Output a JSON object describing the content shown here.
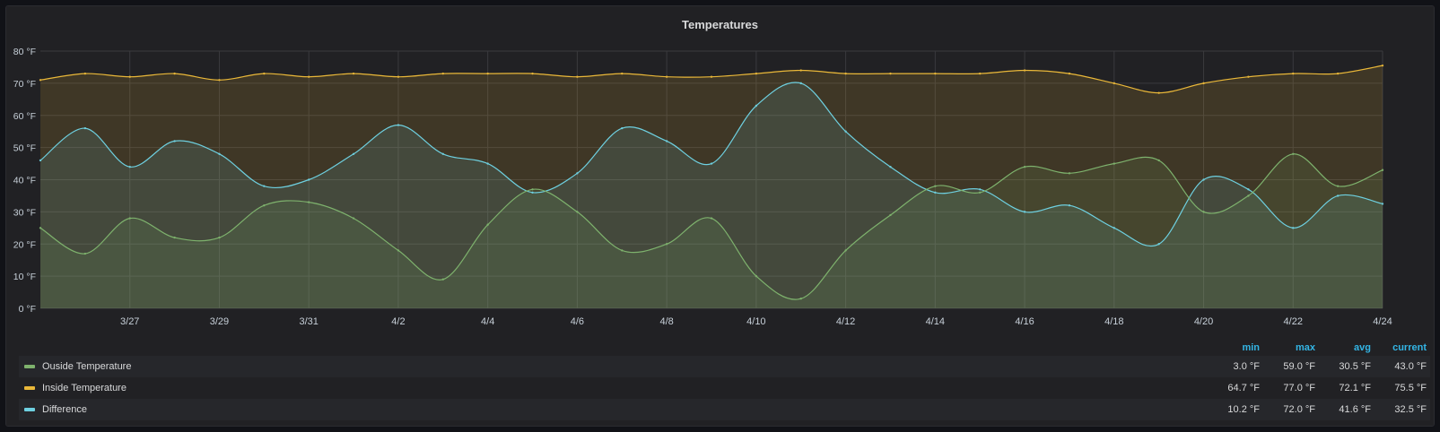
{
  "panel": {
    "title": "Temperatures"
  },
  "legend": {
    "headers": [
      "min",
      "max",
      "avg",
      "current"
    ],
    "rows": [
      {
        "name": "Ouside Temperature",
        "color": "#7eb26d",
        "values": [
          "3.0 °F",
          "59.0 °F",
          "30.5 °F",
          "43.0 °F"
        ]
      },
      {
        "name": "Inside Temperature",
        "color": "#eab839",
        "values": [
          "64.7 °F",
          "77.0 °F",
          "72.1 °F",
          "75.5 °F"
        ]
      },
      {
        "name": "Difference",
        "color": "#6ed0e0",
        "values": [
          "10.2 °F",
          "72.0 °F",
          "41.6 °F",
          "32.5 °F"
        ]
      }
    ]
  },
  "chart_data": {
    "type": "area",
    "title": "Temperatures",
    "xlabel": "",
    "ylabel": "",
    "xlim": [
      "3/25",
      "4/24"
    ],
    "ylim": [
      0,
      80
    ],
    "y_ticks": [
      "0 °F",
      "10 °F",
      "20 °F",
      "30 °F",
      "40 °F",
      "50 °F",
      "60 °F",
      "70 °F",
      "80 °F"
    ],
    "x_ticks": [
      "3/27",
      "3/29",
      "3/31",
      "4/2",
      "4/4",
      "4/6",
      "4/8",
      "4/10",
      "4/12",
      "4/14",
      "4/16",
      "4/18",
      "4/20",
      "4/22",
      "4/24"
    ],
    "grid": true,
    "legend_position": "bottom",
    "x": [
      "3/25",
      "3/26",
      "3/27",
      "3/28",
      "3/29",
      "3/30",
      "3/31",
      "4/1",
      "4/2",
      "4/3",
      "4/4",
      "4/5",
      "4/6",
      "4/7",
      "4/8",
      "4/9",
      "4/10",
      "4/11",
      "4/12",
      "4/13",
      "4/14",
      "4/15",
      "4/16",
      "4/17",
      "4/18",
      "4/19",
      "4/20",
      "4/21",
      "4/22",
      "4/23",
      "4/24"
    ],
    "series": [
      {
        "name": "Ouside Temperature",
        "color": "#7eb26d",
        "values": [
          25,
          17,
          28,
          22,
          22,
          32,
          33,
          28,
          18,
          9,
          26,
          37,
          30,
          18,
          20,
          28,
          10,
          3,
          18,
          29,
          38,
          36,
          44,
          42,
          45,
          46,
          30,
          35,
          48,
          38,
          43
        ]
      },
      {
        "name": "Inside Temperature",
        "color": "#eab839",
        "values": [
          71,
          73,
          72,
          73,
          71,
          73,
          72,
          73,
          72,
          73,
          73,
          73,
          72,
          73,
          72,
          72,
          73,
          74,
          73,
          73,
          73,
          73,
          74,
          73,
          70,
          67,
          70,
          72,
          73,
          73,
          75.5
        ]
      },
      {
        "name": "Difference",
        "color": "#6ed0e0",
        "values": [
          46,
          56,
          44,
          52,
          48,
          38,
          40,
          48,
          57,
          48,
          45,
          36,
          42,
          56,
          52,
          45,
          63,
          70,
          55,
          44,
          36,
          37,
          30,
          32,
          25,
          20,
          40,
          37,
          25,
          35,
          32.5
        ]
      }
    ]
  }
}
